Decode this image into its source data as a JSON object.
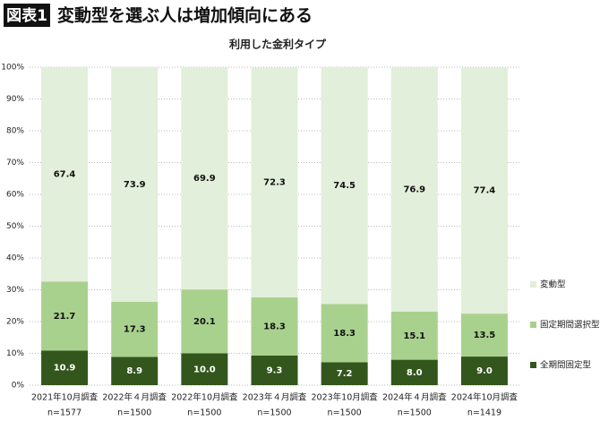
{
  "chart_data": {
    "type": "stacked_bar",
    "title_tag": "図表1",
    "title": "変動型を選ぶ人は増加傾向にある",
    "subtitle": "利用した金利タイプ",
    "categories": [
      "2021年10月調査",
      "2022年４月調査",
      "2022年10月調査",
      "2023年４月調査",
      "2023年10月調査",
      "2024年４月調査",
      "2024年10月調査"
    ],
    "category_notes": [
      "n=1577",
      "n=1500",
      "n=1500",
      "n=1500",
      "n=1500",
      "n=1500",
      "n=1419"
    ],
    "series": [
      {
        "name": "全期間固定型",
        "color": "#33561c",
        "label_color": "#ffffff",
        "values": [
          10.9,
          8.9,
          10.0,
          9.3,
          7.2,
          8.0,
          9.0
        ],
        "value_labels": [
          "10.9",
          "8.9",
          "10.0",
          "9.3",
          "7.2",
          "8.0",
          "9.0"
        ]
      },
      {
        "name": "固定期間選択型",
        "color": "#a9d18e",
        "label_color": "#111111",
        "values": [
          21.7,
          17.3,
          20.1,
          18.3,
          18.3,
          15.1,
          13.5
        ],
        "value_labels": [
          "21.7",
          "17.3",
          "20.1",
          "18.3",
          "18.3",
          "15.1",
          "13.5"
        ]
      },
      {
        "name": "変動型",
        "color": "#e2efda",
        "label_color": "#111111",
        "values": [
          67.4,
          73.9,
          69.9,
          72.3,
          74.5,
          76.9,
          77.4
        ],
        "value_labels": [
          "67.4",
          "73.9",
          "69.9",
          "72.3",
          "74.5",
          "76.9",
          "77.4"
        ]
      }
    ],
    "ylim": [
      0,
      100
    ],
    "yticks": [
      {
        "value": 0,
        "label": "0%"
      },
      {
        "value": 10,
        "label": "10%"
      },
      {
        "value": 20,
        "label": "20%"
      },
      {
        "value": 30,
        "label": "30%"
      },
      {
        "value": 40,
        "label": "40%"
      },
      {
        "value": 50,
        "label": "50%"
      },
      {
        "value": 60,
        "label": "60%"
      },
      {
        "value": 70,
        "label": "70%"
      },
      {
        "value": 80,
        "label": "80%"
      },
      {
        "value": 90,
        "label": "90%"
      },
      {
        "value": 100,
        "label": "100%"
      }
    ],
    "grid": true,
    "legend": "right"
  }
}
